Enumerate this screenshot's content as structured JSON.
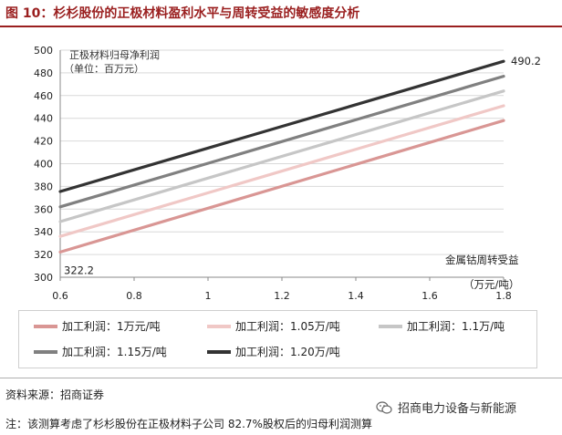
{
  "figure": {
    "title": "图 10：杉杉股份的正极材料盈利水平与周转受益的敏感度分析",
    "source": "资料来源：招商证券",
    "note": "注：该测算考虑了杉杉股份在正极材料子公司 82.7%股权后的归母利润测算",
    "brand": "招商电力设备与新能源",
    "brand_icon": "wechat-icon"
  },
  "chart_data": {
    "type": "line",
    "ylabel": "正极材料归母净利润",
    "yunit": "（单位：百万元）",
    "xlabel": "金属钴周转受益",
    "xunit": "（万元/吨）",
    "xlim": [
      0.6,
      1.8
    ],
    "ylim": [
      300,
      500
    ],
    "xticks": [
      "0.6",
      "0.8",
      "1",
      "1.2",
      "1.4",
      "1.6",
      "1.8"
    ],
    "yticks": [
      "300",
      "320",
      "340",
      "360",
      "380",
      "400",
      "420",
      "440",
      "460",
      "480",
      "500"
    ],
    "grid": true,
    "legend_position": "bottom",
    "annotations": [
      {
        "text": "322.2",
        "x": 0.6,
        "y": 322.2
      },
      {
        "text": "490.2",
        "x": 1.8,
        "y": 490.2
      }
    ],
    "series": [
      {
        "name": "加工利润：1万元/吨",
        "color": "#d99694",
        "x": [
          0.6,
          1.8
        ],
        "values": [
          322.2,
          438.0
        ]
      },
      {
        "name": "加工利润：1.05万/吨",
        "color": "#f0c8c6",
        "x": [
          0.6,
          1.8
        ],
        "values": [
          336.0,
          451.0
        ]
      },
      {
        "name": "加工利润：1.1万/吨",
        "color": "#c6c6c6",
        "x": [
          0.6,
          1.8
        ],
        "values": [
          349.0,
          464.0
        ]
      },
      {
        "name": "加工利润：1.15万/吨",
        "color": "#808080",
        "x": [
          0.6,
          1.8
        ],
        "values": [
          362.0,
          477.0
        ]
      },
      {
        "name": "加工利润：1.20万/吨",
        "color": "#333333",
        "x": [
          0.6,
          1.8
        ],
        "values": [
          375.5,
          490.2
        ]
      }
    ]
  }
}
